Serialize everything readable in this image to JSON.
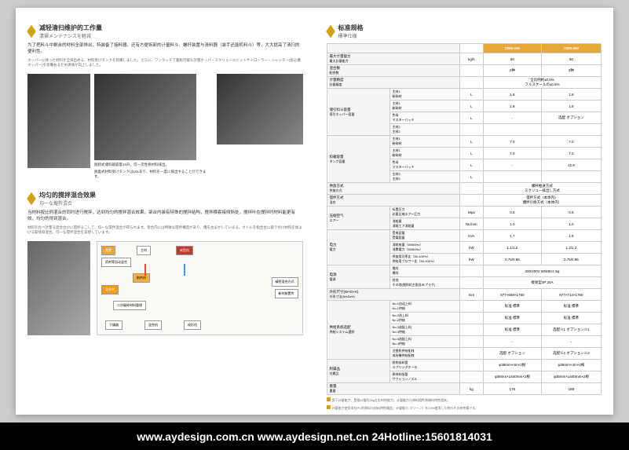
{
  "left": {
    "section1": {
      "titleCn": "减轻清扫维护的工作量",
      "titleJp": "清掃メンテナンスを軽減",
      "desc": "为了把料斗中剩余的材料全部排出，特装备了接料器。还有方便拆卸的计量料斗、螺杆装置与清料器（装手还能机料斗）等，大大提高了清扫的便利性。",
      "descSmall": "ホッパーに残った材料を全排出める、材料受けタンクを装備しました。さらに、ワンタッチで着脱可能な計量ホッパ・スクリューユニットやトローラー・シャッター(投込機ホッパー)を装備右るため清掃が向上しました。",
      "caption1": "脱卸式储料箱容量10升，可一次性将材料排出。",
      "caption1Jp": "脱着式材料受けタンクは10Lあり、材料を一度に排出することができます。"
    },
    "section2": {
      "titleCn": "均匀的搅拌混合效果",
      "titleJp": "均一な攪拌混合",
      "desc": "当材料按比例混合的同时进行搅拌，达到均匀的搅拌混合效果。架台内装有特殊的搅拌结构，搅拌横套接倾斜处，搅拌叶在搅拌时材料能更有效、均匀的得到混合。",
      "descSmall": "材料を比べ計量る混合台かに搅拌るこして、均一な搅拌混合が得られます。架台内には特殊な搅拌構造があり、攪を古まかしていまる。オトルを組合台に取り付け材料を加よける取倾斜混合、均一な搅拌混合を実現しています。"
    },
    "diagram": {
      "labels": [
        "角筒",
        "药剂等自动混合",
        "成型机",
        "主材",
        "助剂材",
        "新剂装置传",
        "混合材",
        "二次破碎材料管理",
        "干燥器",
        "混合机",
        "成形机",
        "精密混合方式",
        "螺杆特征资料",
        "依粉碎能作为式"
      ]
    }
  },
  "right": {
    "titleCn": "标准规格",
    "titleJp": "標準仕様",
    "models": [
      "CBM-250",
      "CBM-350"
    ],
    "specs": [
      {
        "label": "最大计量能力",
        "sublabel": "最大計量能力",
        "unit": "kg/h",
        "v1": "50",
        "v2": "50"
      },
      {
        "label": "混合数",
        "sublabel": "配合数",
        "unit": "",
        "v1": "2种",
        "v2": "3种"
      },
      {
        "label": "计量精度",
        "sublabel": "計量精度",
        "unit": "",
        "v1": "全比例約±0.5%\nフルスケールの±0.5%",
        "v2": "",
        "colspan": true
      },
      {
        "label": "储引料斗容量",
        "sublabel": "導引ホッパー容量",
        "rows": [
          {
            "n": "主材1",
            "j": "粉砕材",
            "u": "L",
            "v1": "1.8",
            "v2": "1.8"
          },
          {
            "n": "主材1",
            "j": "粉砕材",
            "u": "L",
            "v1": "1.8",
            "v2": "1.8"
          },
          {
            "n": "色母",
            "j": "マスターバッチ",
            "u": "L",
            "v1": "-",
            "v2": "选配\nオプション"
          },
          {
            "n": "主材2",
            "j": "主材2",
            "u": "",
            "v1": "",
            "v2": ""
          }
        ]
      },
      {
        "label": "料箱容量",
        "sublabel": "タンク容量",
        "rows": [
          {
            "n": "主材1",
            "j": "粉砕材",
            "u": "L",
            "v1": "7.0",
            "v2": "7.0"
          },
          {
            "n": "主材1",
            "j": "粉砕材",
            "u": "L",
            "v1": "7.0",
            "v2": "7.0"
          },
          {
            "n": "色母",
            "j": "マスターバッチ",
            "u": "L",
            "v1": "-",
            "v2": "12.8"
          },
          {
            "n": "主材2",
            "j": "主材2",
            "u": "L",
            "v1": "",
            "v2": ""
          }
        ]
      },
      {
        "label": "供放方式",
        "sublabel": "供放方式",
        "unit": "",
        "v1": "螺杆推进方式\nスクリュー排出し方式",
        "colspan": true
      },
      {
        "label": "搅拌方式",
        "sublabel": "混合",
        "unit": "",
        "v1": "搅拌方式（本体内）\n攪拌引掛方式（本体内）",
        "colspan": true
      },
      {
        "label": "压缩空气",
        "sublabel": "エアー",
        "rows": [
          {
            "n": "标置压力",
            "j": "必要圧縮エアー圧力",
            "u": "Mpa",
            "v1": "0.5",
            "v2": "0.5"
          },
          {
            "n": "消耗量",
            "j": "消耗工ア消耗量",
            "u": "NL/min",
            "v1": "1.0",
            "v2": "1.0"
          }
        ]
      },
      {
        "label": "电力",
        "sublabel": "電力",
        "rows": [
          {
            "n": "受电容量",
            "j": "受電容量",
            "u": "kVA",
            "v1": "1.7",
            "v2": "1.8"
          },
          {
            "n": "消耗电量（50/60Hz）",
            "j": "消費電力（50/60Hz）",
            "u": "kW",
            "v1": "1.1/1.2",
            "v2": "1.2/1.3"
          },
          {
            "n": "供放用功率比（50-100%）",
            "j": "供給用ブロワー比（50-100%）",
            "u": "kW",
            "v1": "0.75/0.85",
            "v2": "0.75/0.85"
          }
        ]
      },
      {
        "label": "电源",
        "sublabel": "電源",
        "rows": [
          {
            "n": "搅拌",
            "j": "攪拌",
            "u": "",
            "v1": "200/200V 50/60Hz 3φ",
            "colspan": true
          },
          {
            "n": "其他",
            "j": "その他(搅拌机主配含みプラグ)",
            "u": "",
            "v1": "接地型3P 20A",
            "colspan": true
          }
        ]
      },
      {
        "label": "外形尺寸(W×D×H)",
        "sublabel": "外形寸法(WxDxH)",
        "unit": "mm",
        "v1": "877×659×1760",
        "v2": "877×714×1760"
      },
      {
        "label": "供给系统选配",
        "sublabel": "供給システム選択",
        "rows": [
          {
            "n": "No.1自动上料",
            "j": "No.1供給",
            "u": "",
            "v1": "标准\n標準",
            "v2": "标准\n標準"
          },
          {
            "n": "No.2选上料",
            "j": "No.2供給",
            "u": "",
            "v1": "标准\n標準",
            "v2": "标准\n標準"
          },
          {
            "n": "No.3选配上料",
            "j": "No.3供給",
            "u": "",
            "v1": "标准\n標準",
            "v2": "选配※1\nオプション※1"
          },
          {
            "n": "No.4选配上料",
            "j": "No.4供給",
            "u": "",
            "v1": "-",
            "v2": "-"
          },
          {
            "n": "注塑机供给配线",
            "j": "成形機供給配線",
            "u": "",
            "v1": "选配\nオプション",
            "v2": "选配※2\nオプション※2"
          }
        ]
      },
      {
        "label": "附属品",
        "sublabel": "付属品",
        "rows": [
          {
            "n": "耐热吸料管",
            "j": "スプリングホース",
            "u": "",
            "v1": "φ38mm×4m×2根",
            "v2": "φ38mm×4m×2根"
          },
          {
            "n": "原材料吸管",
            "j": "サクションノズル",
            "u": "",
            "v1": "φ38mm×L640mm×2根",
            "v2": "φ38mm×L640mm×2根"
          }
        ]
      },
      {
        "label": "重量",
        "sublabel": "重量",
        "unit": "kg",
        "v1": "176",
        "v2": "188"
      }
    ],
    "notes": [
      "资于计量能力，是指计量约2kg左右时的能力。计量能力与原料相性和物料特性相关。",
      "计量能力使用本社PC的原料与材料特性确定。计量能カ-グリーン》を20%使用した時のその参考値です。"
    ]
  },
  "footer": "www.aydesign.com.cn  www.aydesign.net.cn  24Hotline:15601814031"
}
